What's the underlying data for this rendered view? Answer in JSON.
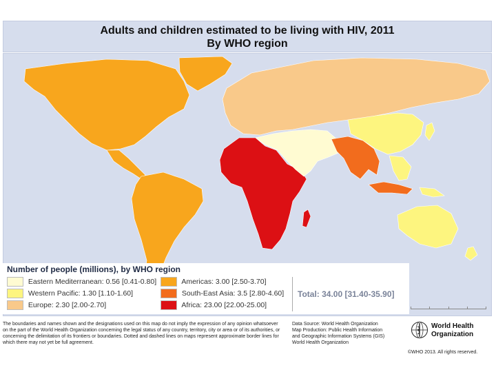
{
  "title": {
    "line1": "Adults and children estimated to be living with HIV, 2011",
    "line2": "By WHO region"
  },
  "legend": {
    "heading": "Number of people (millions), by WHO region",
    "items": [
      {
        "label": "Eastern Mediterranean: 0.56 [0.41-0.80]",
        "color": "#fffbd2"
      },
      {
        "label": "Western Pacific: 1.30 [1.10-1.60]",
        "color": "#fdf57f"
      },
      {
        "label": "Europe: 2.30 [2.00-2.70]",
        "color": "#f9c98a"
      },
      {
        "label": "Americas: 3.00 [2.50-3.70]",
        "color": "#f8a61d"
      },
      {
        "label": "South-East Asia: 3.5 [2.80-4.60]",
        "color": "#f26c1d"
      },
      {
        "label": "Africa: 23.00 [22.00-25.00]",
        "color": "#dc1014"
      }
    ],
    "total": "Total: 34.00 [31.40-35.90]"
  },
  "map": {
    "ocean_color": "#d6dded",
    "regions": [
      "Americas",
      "Europe",
      "Africa",
      "Eastern Mediterranean",
      "South-East Asia",
      "Western Pacific"
    ]
  },
  "footer": {
    "disclaimer": "The boundaries and names shown and the designations used on this map do not imply the expression of any opinion whatsoever on the part of the World Health Organization concerning the legal status of any country, territory, city or area or of its authorities, or concerning the delimitation of its frontiers or boundaries. Dotted and dashed lines on maps represent approximate border lines for which there may not yet be full agreement.",
    "data_source": "Data Source: World Health Organization",
    "map_production_1": "Map Production: Public Health Information",
    "map_production_2": "and Geographic Information Systems (GIS)",
    "map_production_3": "World Health Organization",
    "org_line1": "World Health",
    "org_line2": "Organization",
    "copyright": "©WHO 2013. All rights reserved."
  }
}
